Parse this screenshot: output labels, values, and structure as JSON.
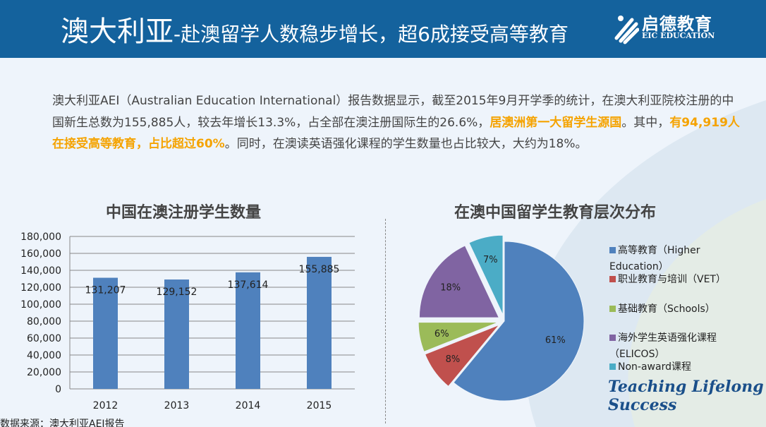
{
  "header": {
    "title_main": "澳大利亚",
    "title_sub": "-赴澳留学人数稳步增长，超6成接受高等教育",
    "logo_cn": "启德教育",
    "logo_en": "EIC EDUCATION"
  },
  "paragraph": {
    "p1": "澳大利亚AEI（Australian Education International）报告数据显示，截至2015年9月开学季的统计，在澳大利亚院校注册的中国新生总数为155,885人，较去年增长13.3%，占全部在澳注册国际生的26.6%，",
    "h1": "居澳洲第一大留学生源国",
    "p2": "。其中，",
    "h2": "有94,919人在接受高等教育，占比超过60%",
    "p3": "。同时，在澳读英语强化课程的学生数量也占比较大，大约为18%。"
  },
  "source": "数据来源：澳大利亚AEI报告",
  "slogan": "Teaching Lifelong Success",
  "colors": {
    "header": "#14629d",
    "bar": "#4f81bd",
    "highlight": "#f5a300"
  },
  "chart_data": [
    {
      "type": "bar",
      "title": "中国在澳注册学生数量",
      "categories": [
        "2012",
        "2013",
        "2014",
        "2015"
      ],
      "values": [
        131207,
        129152,
        137614,
        155885
      ],
      "data_labels": [
        "131,207",
        "129,152",
        "137,614",
        "155,885"
      ],
      "ylim": [
        0,
        180000
      ],
      "yticks": [
        "0",
        "20,000",
        "40,000",
        "60,000",
        "80,000",
        "100,000",
        "120,000",
        "140,000",
        "160,000",
        "180,000"
      ],
      "grid": true
    },
    {
      "type": "pie",
      "title": "在澳中国留学生教育层次分布",
      "legend": "right",
      "slices": [
        {
          "name": "高等教育（Higher Education）",
          "value": 61,
          "label": "61%",
          "color": "#4f81bd"
        },
        {
          "name": "职业教育与培训（VET）",
          "value": 8,
          "label": "8%",
          "color": "#c0504d"
        },
        {
          "name": "基础教育（Schools）",
          "value": 6,
          "label": "6%",
          "color": "#9bbb59"
        },
        {
          "name": "海外学生英语强化课程（ELICOS）",
          "value": 18,
          "label": "18%",
          "color": "#8064a2"
        },
        {
          "name": "Non-award课程",
          "value": 7,
          "label": "7%",
          "color": "#4bacc6"
        }
      ]
    }
  ]
}
